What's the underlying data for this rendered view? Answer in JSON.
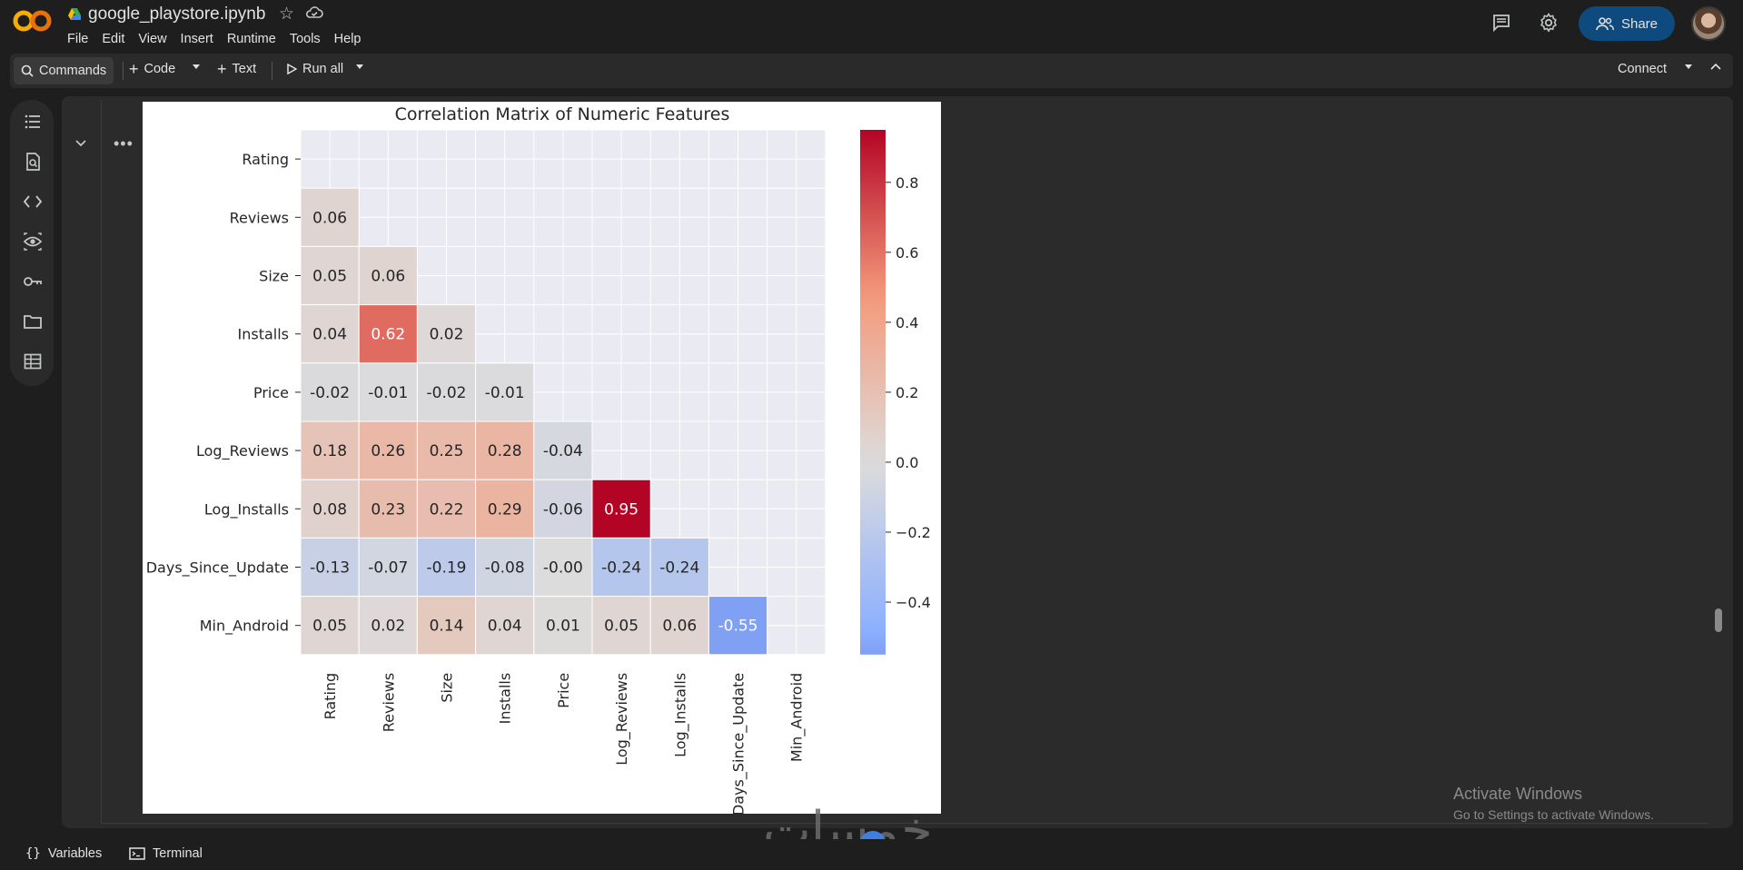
{
  "app": {
    "logo_text": "CO",
    "notebook_title": "google_playstore.ipynb",
    "menu": [
      "File",
      "Edit",
      "View",
      "Insert",
      "Runtime",
      "Tools",
      "Help"
    ],
    "share_label": "Share"
  },
  "toolbar": {
    "commands_label": "Commands",
    "code_label": "Code",
    "text_label": "Text",
    "run_all_label": "Run all",
    "connect_label": "Connect"
  },
  "statusbar": {
    "variables_label": "Variables",
    "terminal_label": "Terminal"
  },
  "os_notice": {
    "line1": "Activate Windows",
    "line2": "Go to Settings to activate Windows."
  },
  "watermark_text": "خمسات",
  "colors": {
    "share_bg": "#0f4a7f",
    "cmap_low": "#6f92f3",
    "cmap_mid": "#dddcdc",
    "cmap_high": "#b40426"
  },
  "chart_data": {
    "type": "heatmap",
    "title": "Correlation Matrix of Numeric Features",
    "rows": [
      "Rating",
      "Reviews",
      "Size",
      "Installs",
      "Price",
      "Log_Reviews",
      "Log_Installs",
      "Days_Since_Update",
      "Min_Android"
    ],
    "cols": [
      "Rating",
      "Reviews",
      "Size",
      "Installs",
      "Price",
      "Log_Reviews",
      "Log_Installs",
      "Days_Since_Update",
      "Min_Android"
    ],
    "mask": "upper-triangle-including-diagonal",
    "values": [
      [],
      [
        0.06
      ],
      [
        0.05,
        0.06
      ],
      [
        0.04,
        0.62,
        0.02
      ],
      [
        -0.02,
        -0.01,
        -0.02,
        -0.01
      ],
      [
        0.18,
        0.26,
        0.25,
        0.28,
        -0.04
      ],
      [
        0.08,
        0.23,
        0.22,
        0.29,
        -0.06,
        0.95
      ],
      [
        -0.13,
        -0.07,
        -0.19,
        -0.08,
        -0.0,
        -0.24,
        -0.24
      ],
      [
        0.05,
        0.02,
        0.14,
        0.04,
        0.01,
        0.05,
        0.06,
        -0.55
      ]
    ],
    "labels": [
      [],
      [
        "0.06"
      ],
      [
        "0.05",
        "0.06"
      ],
      [
        "0.04",
        "0.62",
        "0.02"
      ],
      [
        "-0.02",
        "-0.01",
        "-0.02",
        "-0.01"
      ],
      [
        "0.18",
        "0.26",
        "0.25",
        "0.28",
        "-0.04"
      ],
      [
        "0.08",
        "0.23",
        "0.22",
        "0.29",
        "-0.06",
        "0.95"
      ],
      [
        "-0.13",
        "-0.07",
        "-0.19",
        "-0.08",
        "-0.00",
        "-0.24",
        "-0.24"
      ],
      [
        "0.05",
        "0.02",
        "0.14",
        "0.04",
        "0.01",
        "0.05",
        "0.06",
        "-0.55"
      ]
    ],
    "colorbar": {
      "vmin": -0.55,
      "vmax": 0.95,
      "ticks": [
        0.8,
        0.6,
        0.4,
        0.2,
        0.0,
        -0.2,
        -0.4
      ],
      "tick_labels": [
        "0.8",
        "0.6",
        "0.4",
        "0.2",
        "0.0",
        "−0.2",
        "−0.4"
      ]
    },
    "colormap": "coolwarm",
    "grid": true,
    "legend": "colorbar-right"
  }
}
